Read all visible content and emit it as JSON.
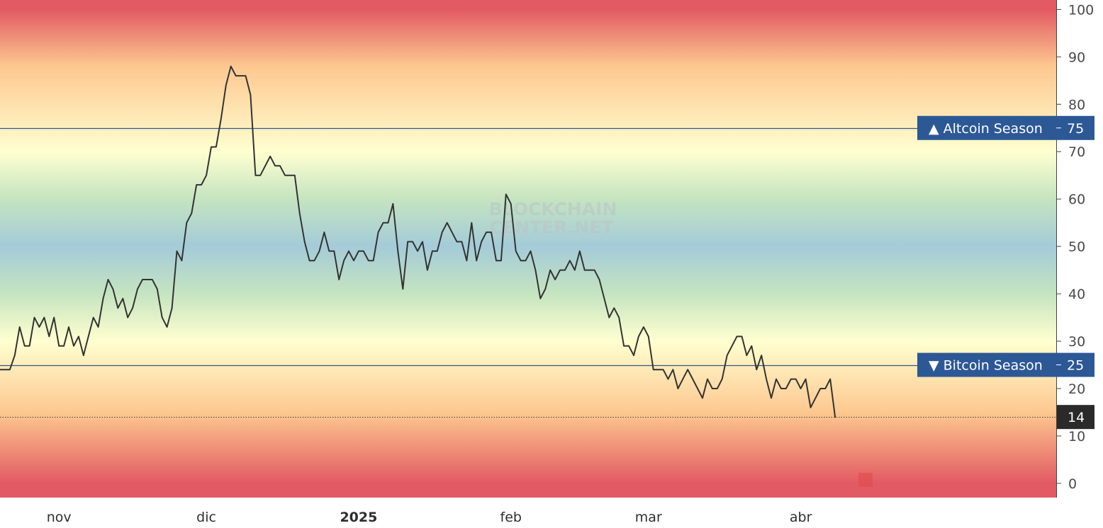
{
  "watermark": {
    "line1": "BLOCKCHAIN",
    "line2": "CENTER.NET"
  },
  "colors": {
    "line": "#333333",
    "threshold_line": "#2e5a8e",
    "badge": "#2c5896",
    "current_badge": "#2a2a2a",
    "gradient_red": "#e25a63",
    "gradient_orange": "#fdc890",
    "gradient_yellow": "#ffffd0",
    "gradient_green": "#c5e4c0",
    "gradient_blue": "#a4cbd9"
  },
  "chart_data": {
    "type": "line",
    "ylim": [
      -3,
      102
    ],
    "yticks": [
      0,
      10,
      20,
      30,
      40,
      50,
      60,
      70,
      80,
      90,
      100
    ],
    "x_tick_labels": [
      {
        "label": "nov",
        "date": "2024-11-01",
        "bold": false
      },
      {
        "label": "dic",
        "date": "2024-12-01",
        "bold": false
      },
      {
        "label": "2025",
        "date": "2025-01-01",
        "bold": true
      },
      {
        "label": "feb",
        "date": "2025-02-01",
        "bold": false
      },
      {
        "label": "mar",
        "date": "2025-03-01",
        "bold": false
      },
      {
        "label": "abr",
        "date": "2025-04-01",
        "bold": false
      }
    ],
    "xlim": [
      "2024-10-20",
      "2025-05-23"
    ],
    "thresholds": [
      {
        "value": 75,
        "label": "▲ Altcoin Season",
        "value_label": "75"
      },
      {
        "value": 25,
        "label": "▼ Bitcoin Season",
        "value_label": "25"
      }
    ],
    "current": {
      "value": 14,
      "label": "14"
    },
    "series": [
      {
        "start_date": "2024-10-20",
        "values": [
          24,
          24,
          24,
          27,
          33,
          29,
          29,
          35,
          33,
          35,
          31,
          35,
          29,
          29,
          33,
          29,
          31,
          27,
          31,
          35,
          33,
          39,
          43,
          41,
          37,
          39,
          35,
          37,
          41,
          43,
          43,
          43,
          41,
          35,
          33,
          37,
          49,
          47,
          55,
          57,
          63,
          63,
          65,
          71,
          71,
          77,
          84,
          88,
          86,
          86,
          86,
          82,
          65,
          65,
          67,
          69,
          67,
          67,
          65,
          65,
          65,
          57,
          51,
          47,
          47,
          49,
          53,
          49,
          49,
          43,
          47,
          49,
          47,
          49,
          49,
          47,
          47,
          53,
          55,
          55,
          59,
          49,
          41,
          51,
          51,
          49,
          51,
          45,
          49,
          49,
          53,
          55,
          53,
          51,
          51,
          47,
          55,
          47,
          51,
          53,
          53,
          47,
          47,
          61,
          59,
          49,
          47,
          47,
          49,
          45,
          39,
          41,
          45,
          43,
          45,
          45,
          47,
          45,
          49,
          45,
          45,
          45,
          43,
          39,
          35,
          37,
          35,
          29,
          29,
          27,
          31,
          33,
          31,
          24,
          24,
          24,
          22,
          24,
          20,
          22,
          24,
          22,
          20,
          18,
          22,
          20,
          20,
          22,
          27,
          29,
          31,
          31,
          27,
          29,
          24,
          27,
          22,
          18,
          22,
          20,
          20,
          22,
          22,
          20,
          22,
          16,
          18,
          20,
          20,
          22,
          14
        ]
      }
    ]
  }
}
